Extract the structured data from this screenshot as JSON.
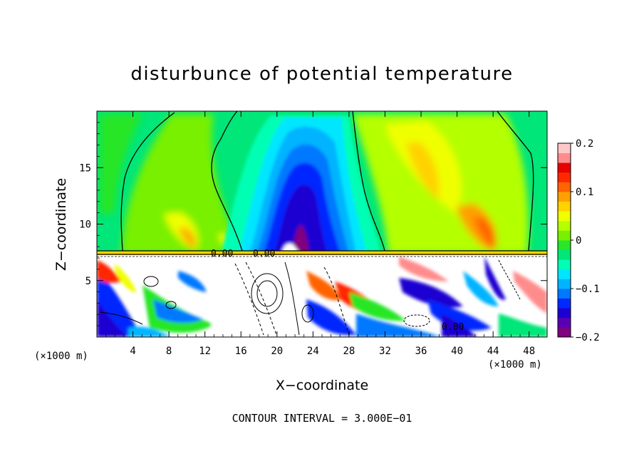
{
  "chart_data": {
    "type": "heatmap",
    "title": "disturbunce of potential temperature",
    "xlabel": "X−coordinate",
    "ylabel": "Z−coordinate",
    "x_unit_left": "(×1000 m)",
    "x_unit_right": "(×1000 m)",
    "xlim": [
      0,
      50
    ],
    "ylim": [
      0,
      20
    ],
    "x_ticks": [
      4,
      8,
      12,
      16,
      20,
      24,
      28,
      32,
      36,
      40,
      44,
      48
    ],
    "x_tick_labels": [
      "4",
      "8",
      "12",
      "16",
      "20",
      "24",
      "28",
      "32",
      "36",
      "40",
      "44",
      "48"
    ],
    "y_ticks": [
      5,
      10,
      15
    ],
    "y_tick_labels": [
      "5",
      "10",
      "15"
    ],
    "colorbar": {
      "range": [
        -0.2,
        0.2
      ],
      "ticks": [
        0.2,
        0.1,
        0,
        -0.1,
        -0.2
      ],
      "tick_labels": [
        "0.2",
        "0.1",
        "0",
        "−0.1",
        "−0.2"
      ],
      "colors": [
        "#800080",
        "#5a00b4",
        "#1e00d2",
        "#0028ff",
        "#0078ff",
        "#00b4ff",
        "#00e6ff",
        "#00ffb4",
        "#00e678",
        "#28e628",
        "#78f000",
        "#b4ff00",
        "#f0ff00",
        "#ffd200",
        "#ffa000",
        "#ff6400",
        "#ff2800",
        "#e60000",
        "#ff8c8c",
        "#ffc8c8"
      ]
    },
    "contour_labels": [
      "0.00",
      "0.00",
      "0.00"
    ],
    "annotation": "CONTOUR INTERVAL = 3.000E−01"
  }
}
